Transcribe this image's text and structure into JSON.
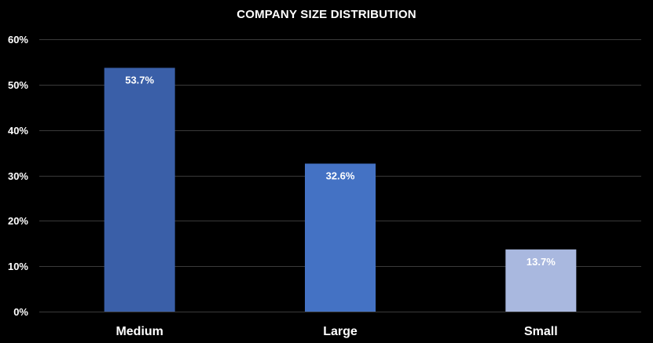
{
  "chart_data": {
    "type": "bar",
    "title": "COMPANY SIZE DISTRIBUTION",
    "categories": [
      "Medium",
      "Large",
      "Small"
    ],
    "values": [
      53.7,
      32.6,
      13.7
    ],
    "data_labels": [
      "53.7%",
      "32.6%",
      "13.7%"
    ],
    "bar_colors": [
      "#3a5fa8",
      "#4472c4",
      "#a9b8df"
    ],
    "ylim": [
      0,
      60
    ],
    "yticks": [
      0,
      10,
      20,
      30,
      40,
      50,
      60
    ],
    "ytick_labels": [
      "0%",
      "10%",
      "20%",
      "30%",
      "40%",
      "50%",
      "60%"
    ],
    "grid": true,
    "background": "#000000",
    "gridline_color": "#3a3a3a",
    "text_color": "#ffffff"
  }
}
